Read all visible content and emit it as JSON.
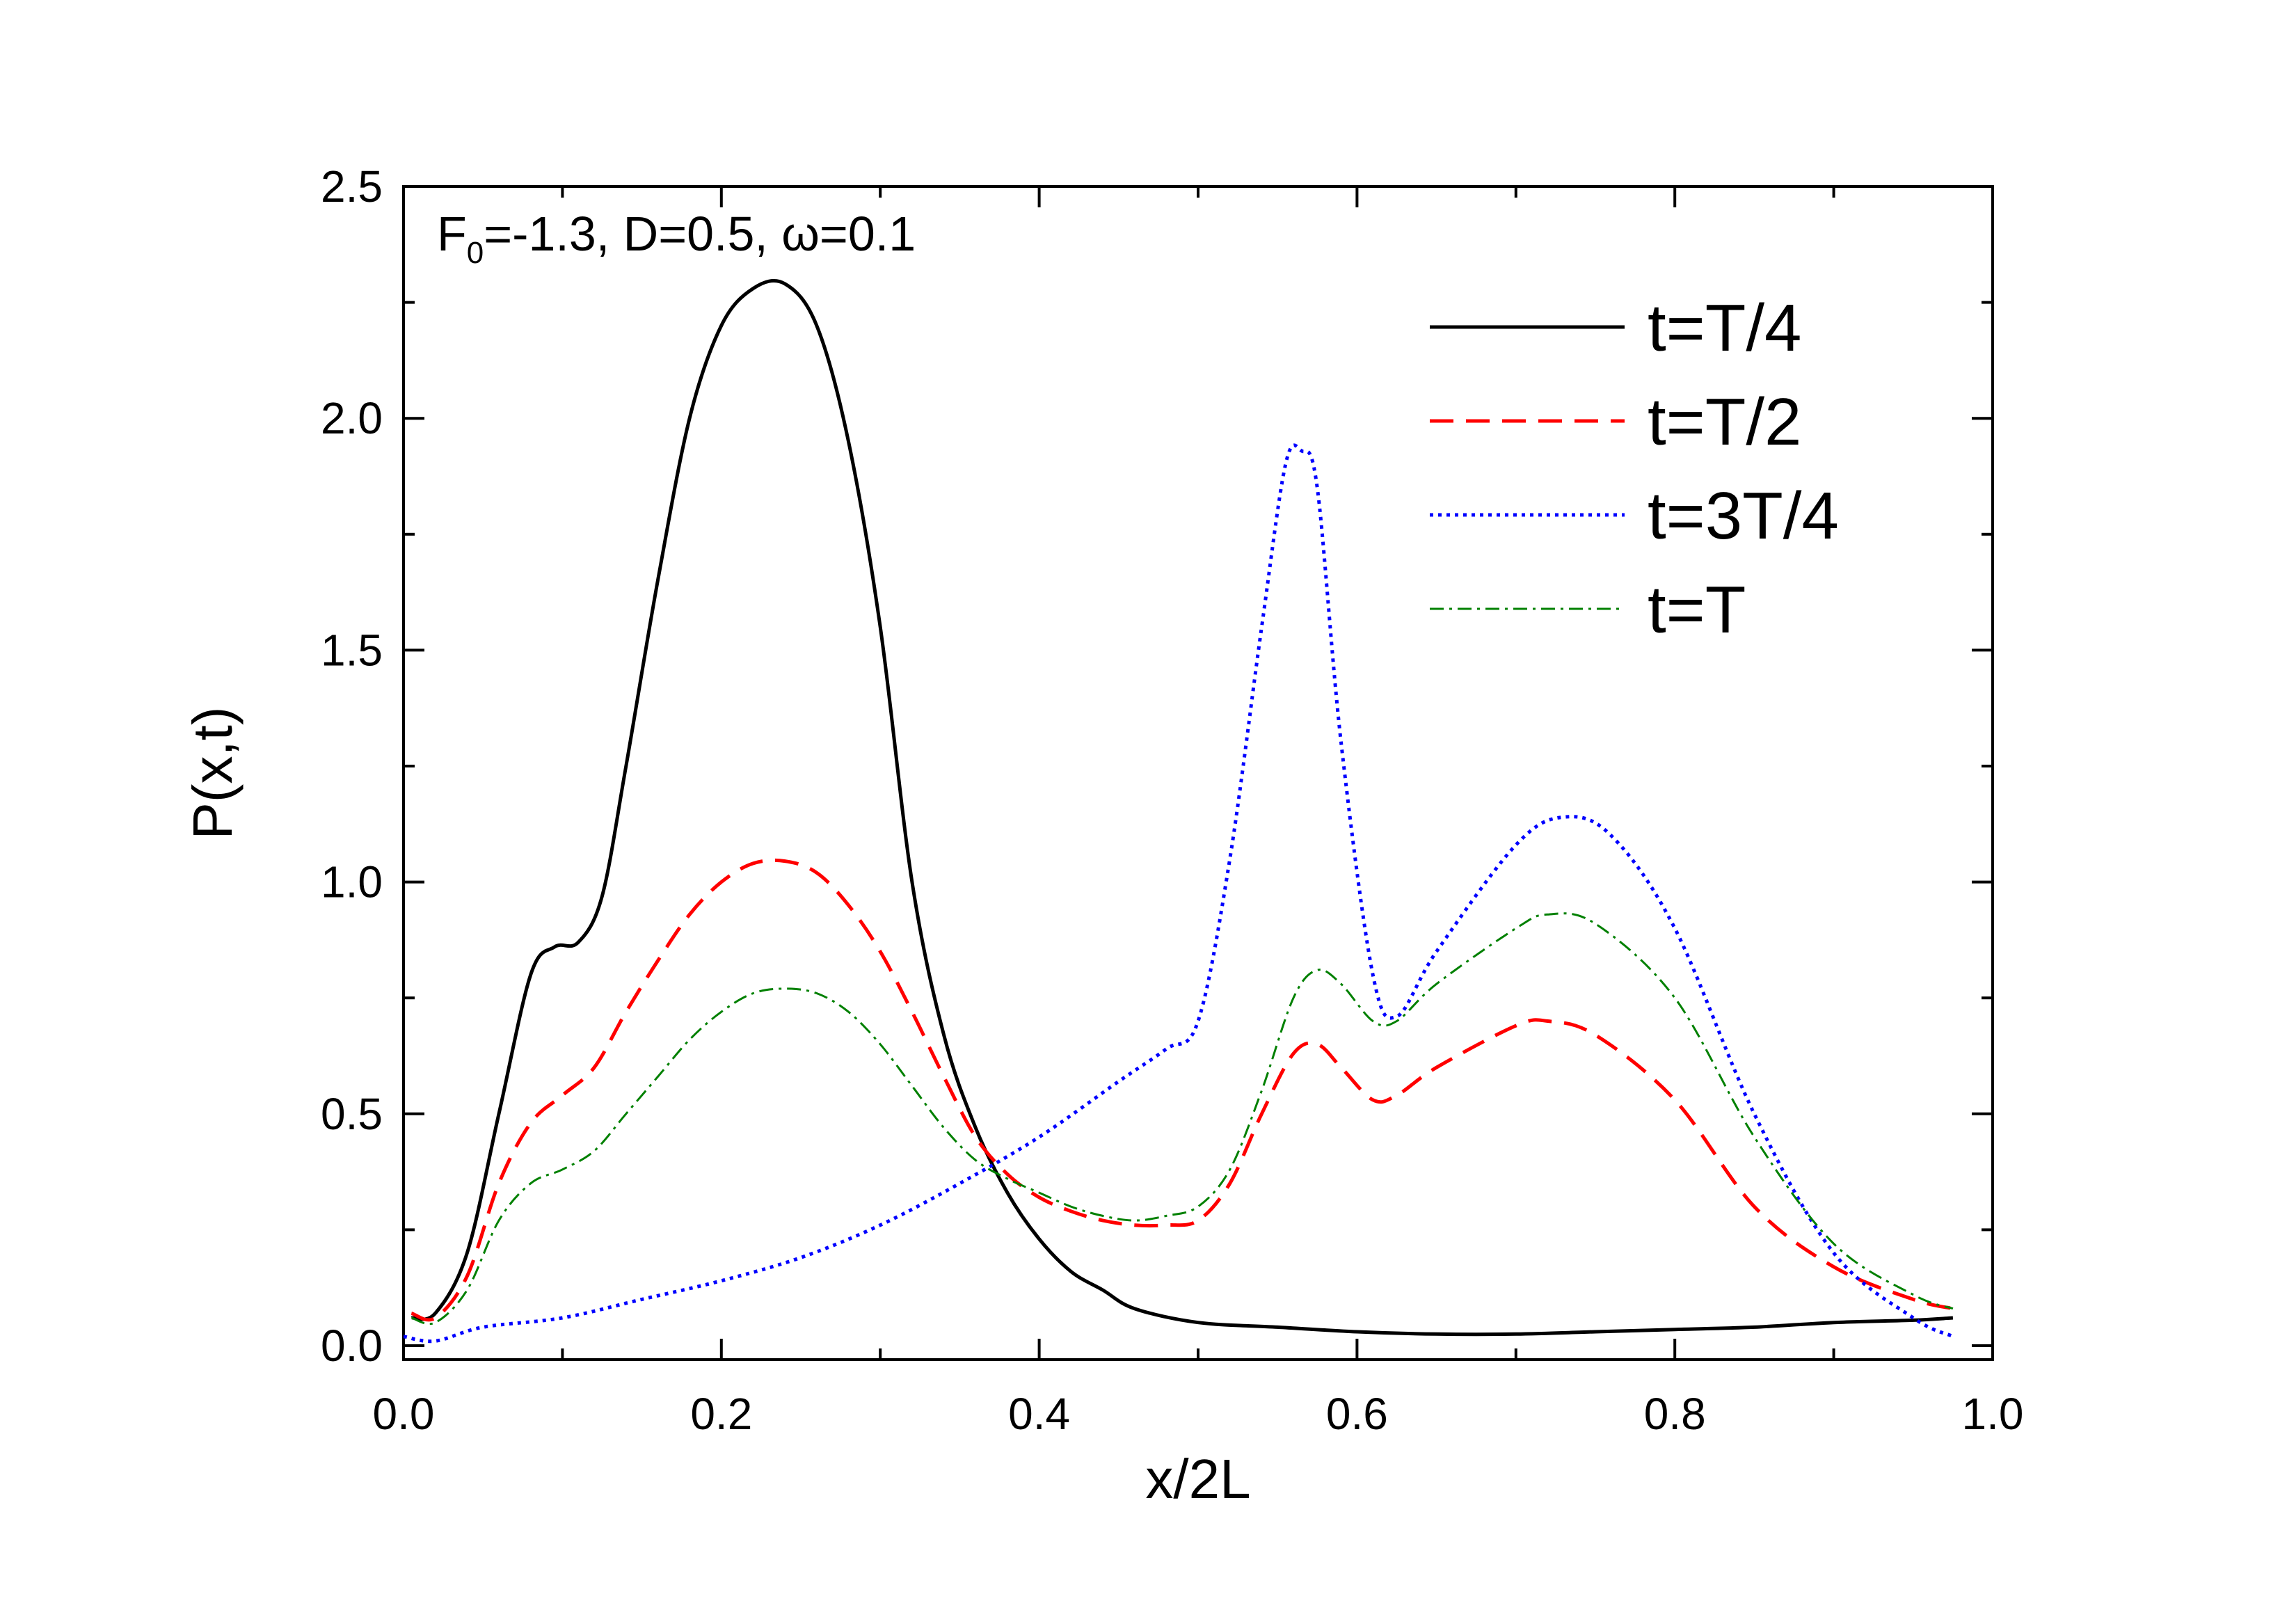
{
  "chart_data": {
    "type": "line",
    "title": "",
    "xlabel": "x/2L",
    "ylabel": "P(x,t)",
    "xlim": [
      0.0,
      1.0
    ],
    "ylim": [
      -0.03,
      2.5
    ],
    "xticks": [
      0.0,
      0.2,
      0.4,
      0.6,
      0.8,
      1.0
    ],
    "xtick_labels": [
      "0.0",
      "0.2",
      "0.4",
      "0.6",
      "0.8",
      "1.0"
    ],
    "yticks": [
      0.0,
      0.5,
      1.0,
      1.5,
      2.0,
      2.5
    ],
    "ytick_labels": [
      "0.0",
      "0.5",
      "1.0",
      "1.5",
      "2.0",
      "2.5"
    ],
    "annotation": {
      "prefix": "F",
      "subscript": "0",
      "suffix": "=-1.3, D=0.5, ω=0.1"
    },
    "legend_position": "top-right",
    "grid": false,
    "series": [
      {
        "name": "t=T/4",
        "color": "#000000",
        "style": "solid",
        "x": [
          0.005,
          0.02,
          0.04,
          0.06,
          0.08,
          0.095,
          0.11,
          0.125,
          0.14,
          0.16,
          0.18,
          0.2,
          0.22,
          0.24,
          0.26,
          0.28,
          0.3,
          0.32,
          0.34,
          0.36,
          0.38,
          0.4,
          0.42,
          0.44,
          0.46,
          0.5,
          0.55,
          0.6,
          0.65,
          0.7,
          0.75,
          0.8,
          0.85,
          0.9,
          0.95,
          0.975
        ],
        "y": [
          0.06,
          0.07,
          0.2,
          0.5,
          0.8,
          0.86,
          0.87,
          0.97,
          1.25,
          1.65,
          2.0,
          2.2,
          2.28,
          2.29,
          2.2,
          1.95,
          1.55,
          1.0,
          0.67,
          0.47,
          0.33,
          0.23,
          0.16,
          0.12,
          0.08,
          0.05,
          0.04,
          0.03,
          0.025,
          0.025,
          0.03,
          0.035,
          0.04,
          0.05,
          0.055,
          0.06
        ]
      },
      {
        "name": "t=T/2",
        "color": "#ff0000",
        "style": "dashed",
        "x": [
          0.005,
          0.02,
          0.04,
          0.06,
          0.08,
          0.1,
          0.12,
          0.14,
          0.16,
          0.18,
          0.2,
          0.22,
          0.24,
          0.26,
          0.28,
          0.3,
          0.32,
          0.34,
          0.36,
          0.38,
          0.4,
          0.42,
          0.44,
          0.46,
          0.48,
          0.5,
          0.52,
          0.54,
          0.56,
          0.575,
          0.59,
          0.61,
          0.625,
          0.65,
          0.7,
          0.72,
          0.75,
          0.8,
          0.85,
          0.9,
          0.95,
          0.975
        ],
        "y": [
          0.07,
          0.06,
          0.15,
          0.35,
          0.48,
          0.54,
          0.6,
          0.72,
          0.83,
          0.93,
          1.0,
          1.04,
          1.045,
          1.02,
          0.95,
          0.85,
          0.72,
          0.58,
          0.45,
          0.37,
          0.32,
          0.29,
          0.27,
          0.26,
          0.26,
          0.27,
          0.35,
          0.5,
          0.63,
          0.65,
          0.6,
          0.53,
          0.54,
          0.6,
          0.69,
          0.7,
          0.67,
          0.53,
          0.3,
          0.17,
          0.1,
          0.08
        ]
      },
      {
        "name": "t=3T/4",
        "color": "#0000ff",
        "style": "dotted",
        "x": [
          0.0,
          0.02,
          0.05,
          0.1,
          0.15,
          0.2,
          0.25,
          0.3,
          0.35,
          0.4,
          0.45,
          0.48,
          0.5,
          0.52,
          0.54,
          0.555,
          0.565,
          0.575,
          0.59,
          0.61,
          0.625,
          0.65,
          0.7,
          0.73,
          0.76,
          0.8,
          0.85,
          0.9,
          0.95,
          0.975
        ],
        "y": [
          0.02,
          0.01,
          0.04,
          0.06,
          0.1,
          0.14,
          0.19,
          0.26,
          0.35,
          0.45,
          0.57,
          0.64,
          0.7,
          1.05,
          1.55,
          1.9,
          1.93,
          1.85,
          1.3,
          0.8,
          0.71,
          0.85,
          1.08,
          1.14,
          1.1,
          0.9,
          0.5,
          0.2,
          0.06,
          0.02
        ]
      },
      {
        "name": "t=T",
        "color": "#008000",
        "style": "dashdot",
        "x": [
          0.005,
          0.02,
          0.04,
          0.06,
          0.08,
          0.1,
          0.12,
          0.14,
          0.16,
          0.18,
          0.2,
          0.22,
          0.24,
          0.26,
          0.28,
          0.3,
          0.32,
          0.34,
          0.36,
          0.38,
          0.4,
          0.42,
          0.44,
          0.46,
          0.48,
          0.5,
          0.52,
          0.54,
          0.56,
          0.575,
          0.59,
          0.61,
          0.625,
          0.65,
          0.7,
          0.72,
          0.75,
          0.8,
          0.85,
          0.9,
          0.95,
          0.975
        ],
        "y": [
          0.06,
          0.05,
          0.12,
          0.27,
          0.35,
          0.38,
          0.42,
          0.5,
          0.58,
          0.66,
          0.72,
          0.76,
          0.77,
          0.76,
          0.72,
          0.65,
          0.56,
          0.47,
          0.4,
          0.36,
          0.33,
          0.3,
          0.28,
          0.27,
          0.28,
          0.3,
          0.38,
          0.55,
          0.75,
          0.81,
          0.78,
          0.7,
          0.7,
          0.78,
          0.9,
          0.93,
          0.91,
          0.75,
          0.45,
          0.22,
          0.11,
          0.08
        ]
      }
    ]
  }
}
